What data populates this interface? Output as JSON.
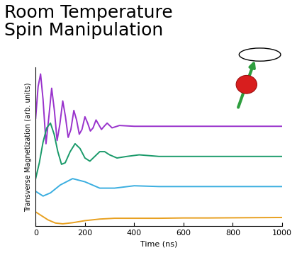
{
  "chart_data": {
    "type": "line",
    "title": "Room Temperature\nSpin Manipulation",
    "x_label": "Time (ns)",
    "y_label": "Transverse Magnetization (arb. units)",
    "xlim": [
      0,
      1000
    ],
    "xticks": [
      0,
      200,
      400,
      600,
      800,
      1000
    ],
    "ylim": [
      0,
      10
    ],
    "yticks": [],
    "tick_labels": "x",
    "series": [
      {
        "color": "#9933cc",
        "x": [
          0,
          10,
          20,
          30,
          42,
          53,
          65,
          76,
          87,
          98,
          110,
          121,
          132,
          143,
          155,
          166,
          177,
          188,
          200,
          211,
          222,
          233,
          245,
          256,
          267,
          278,
          290,
          310,
          340,
          400,
          500,
          600,
          700,
          800,
          900,
          1000
        ],
        "values": [
          6.8,
          8.8,
          9.6,
          8.0,
          5.2,
          6.8,
          8.7,
          7.3,
          5.4,
          6.4,
          7.9,
          6.9,
          5.6,
          6.1,
          7.3,
          6.7,
          5.8,
          6.1,
          6.9,
          6.5,
          6.0,
          6.2,
          6.7,
          6.4,
          6.1,
          6.3,
          6.5,
          6.2,
          6.35,
          6.3,
          6.3,
          6.3,
          6.3,
          6.3,
          6.3,
          6.3
        ]
      },
      {
        "color": "#1a9a6a",
        "x": [
          0,
          15,
          30,
          45,
          60,
          75,
          90,
          105,
          120,
          140,
          160,
          180,
          200,
          220,
          240,
          260,
          280,
          300,
          330,
          370,
          420,
          500,
          600,
          700,
          800,
          900,
          1000
        ],
        "values": [
          3.0,
          4.0,
          5.3,
          6.2,
          6.5,
          5.8,
          4.7,
          3.9,
          4.0,
          4.7,
          5.2,
          4.9,
          4.3,
          4.1,
          4.4,
          4.7,
          4.7,
          4.5,
          4.3,
          4.4,
          4.5,
          4.4,
          4.4,
          4.4,
          4.4,
          4.4,
          4.4
        ]
      },
      {
        "color": "#3aaee0",
        "x": [
          0,
          30,
          60,
          100,
          150,
          200,
          260,
          320,
          400,
          500,
          600,
          700,
          800,
          900,
          1000
        ],
        "values": [
          2.2,
          1.9,
          2.1,
          2.6,
          3.0,
          2.8,
          2.4,
          2.4,
          2.55,
          2.5,
          2.5,
          2.5,
          2.5,
          2.5,
          2.5
        ]
      },
      {
        "color": "#e8a020",
        "x": [
          0,
          25,
          50,
          80,
          110,
          150,
          200,
          260,
          320,
          400,
          500,
          600,
          700,
          800,
          900,
          1000
        ],
        "values": [
          0.9,
          0.65,
          0.4,
          0.2,
          0.15,
          0.22,
          0.35,
          0.45,
          0.5,
          0.5,
          0.5,
          0.52,
          0.52,
          0.53,
          0.54,
          0.55
        ]
      }
    ]
  }
}
